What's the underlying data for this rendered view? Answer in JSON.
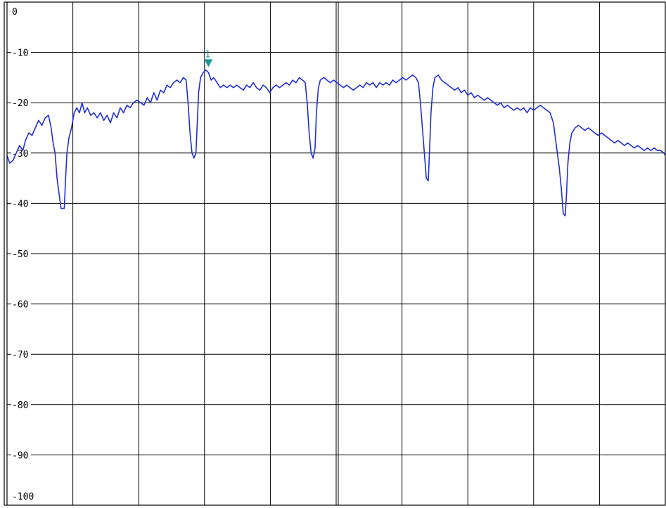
{
  "chart_data": {
    "type": "line",
    "title": "",
    "xlabel": "",
    "ylabel": "",
    "ylim": [
      -100,
      0
    ],
    "xlim": [
      0,
      10
    ],
    "grid": true,
    "y_ticks": [
      {
        "value": 0,
        "label": "0"
      },
      {
        "value": -10,
        "label": "-10"
      },
      {
        "value": -20,
        "label": "-20"
      },
      {
        "value": -30,
        "label": "-30"
      },
      {
        "value": -40,
        "label": "-40"
      },
      {
        "value": -50,
        "label": "-50"
      },
      {
        "value": -60,
        "label": "-60"
      },
      {
        "value": -70,
        "label": "-70"
      },
      {
        "value": -80,
        "label": "-80"
      },
      {
        "value": -90,
        "label": "-90"
      },
      {
        "value": -100,
        "label": "-100"
      }
    ],
    "x_divisions": 10,
    "series": [
      {
        "color": "#1f2fd6",
        "points": [
          [
            0.0,
            -30.5
          ],
          [
            0.04,
            -32
          ],
          [
            0.09,
            -31.5
          ],
          [
            0.14,
            -30
          ],
          [
            0.19,
            -28.5
          ],
          [
            0.24,
            -29.5
          ],
          [
            0.28,
            -27.5
          ],
          [
            0.33,
            -26
          ],
          [
            0.38,
            -26.5
          ],
          [
            0.43,
            -25
          ],
          [
            0.48,
            -23.5
          ],
          [
            0.53,
            -24.5
          ],
          [
            0.58,
            -23
          ],
          [
            0.63,
            -22.5
          ],
          [
            0.67,
            -25
          ],
          [
            0.7,
            -28
          ],
          [
            0.73,
            -30
          ],
          [
            0.76,
            -35
          ],
          [
            0.79,
            -38
          ],
          [
            0.82,
            -41
          ],
          [
            0.87,
            -41
          ],
          [
            0.89,
            -35
          ],
          [
            0.91,
            -30
          ],
          [
            0.94,
            -27
          ],
          [
            0.98,
            -25
          ],
          [
            1.02,
            -22
          ],
          [
            1.06,
            -21
          ],
          [
            1.1,
            -22
          ],
          [
            1.14,
            -20
          ],
          [
            1.18,
            -22
          ],
          [
            1.22,
            -21
          ],
          [
            1.27,
            -22.5
          ],
          [
            1.32,
            -22
          ],
          [
            1.37,
            -23
          ],
          [
            1.42,
            -22
          ],
          [
            1.47,
            -23.5
          ],
          [
            1.52,
            -22.5
          ],
          [
            1.57,
            -24
          ],
          [
            1.62,
            -22
          ],
          [
            1.67,
            -23
          ],
          [
            1.72,
            -21
          ],
          [
            1.77,
            -22
          ],
          [
            1.82,
            -20.5
          ],
          [
            1.87,
            -21
          ],
          [
            1.92,
            -20
          ],
          [
            1.97,
            -19.5
          ],
          [
            2.03,
            -20
          ],
          [
            2.08,
            -20.5
          ],
          [
            2.13,
            -19
          ],
          [
            2.18,
            -20
          ],
          [
            2.23,
            -18
          ],
          [
            2.28,
            -19.5
          ],
          [
            2.33,
            -17.5
          ],
          [
            2.38,
            -18
          ],
          [
            2.43,
            -16.5
          ],
          [
            2.48,
            -17
          ],
          [
            2.53,
            -16
          ],
          [
            2.58,
            -15.5
          ],
          [
            2.63,
            -16
          ],
          [
            2.68,
            -15
          ],
          [
            2.72,
            -15.5
          ],
          [
            2.75,
            -20
          ],
          [
            2.78,
            -26
          ],
          [
            2.81,
            -30
          ],
          [
            2.84,
            -31
          ],
          [
            2.87,
            -30
          ],
          [
            2.89,
            -24
          ],
          [
            2.91,
            -18
          ],
          [
            2.94,
            -15
          ],
          [
            2.98,
            -14
          ],
          [
            3.02,
            -13.5
          ],
          [
            3.06,
            -14
          ],
          [
            3.1,
            -15.5
          ],
          [
            3.14,
            -15
          ],
          [
            3.19,
            -16
          ],
          [
            3.24,
            -17
          ],
          [
            3.29,
            -16.5
          ],
          [
            3.34,
            -17
          ],
          [
            3.39,
            -16.5
          ],
          [
            3.44,
            -17
          ],
          [
            3.49,
            -16.5
          ],
          [
            3.54,
            -17
          ],
          [
            3.59,
            -17.5
          ],
          [
            3.64,
            -16.5
          ],
          [
            3.69,
            -17
          ],
          [
            3.74,
            -16
          ],
          [
            3.79,
            -17
          ],
          [
            3.84,
            -17.5
          ],
          [
            3.89,
            -16.5
          ],
          [
            3.94,
            -17
          ],
          [
            3.99,
            -18
          ],
          [
            4.04,
            -17
          ],
          [
            4.09,
            -16.5
          ],
          [
            4.14,
            -17
          ],
          [
            4.19,
            -16.5
          ],
          [
            4.24,
            -16
          ],
          [
            4.29,
            -16.5
          ],
          [
            4.34,
            -15.5
          ],
          [
            4.39,
            -16
          ],
          [
            4.44,
            -15
          ],
          [
            4.49,
            -15.5
          ],
          [
            4.53,
            -16
          ],
          [
            4.56,
            -20
          ],
          [
            4.59,
            -26
          ],
          [
            4.62,
            -30
          ],
          [
            4.65,
            -31
          ],
          [
            4.68,
            -29
          ],
          [
            4.7,
            -22
          ],
          [
            4.73,
            -17
          ],
          [
            4.76,
            -15.5
          ],
          [
            4.81,
            -15
          ],
          [
            4.86,
            -15.5
          ],
          [
            4.91,
            -16
          ],
          [
            4.96,
            -15.5
          ],
          [
            5.01,
            -16
          ],
          [
            5.06,
            -16.5
          ],
          [
            5.11,
            -17
          ],
          [
            5.16,
            -16.5
          ],
          [
            5.21,
            -17
          ],
          [
            5.26,
            -17.5
          ],
          [
            5.31,
            -17
          ],
          [
            5.36,
            -16.5
          ],
          [
            5.41,
            -17
          ],
          [
            5.46,
            -16
          ],
          [
            5.51,
            -16.5
          ],
          [
            5.56,
            -16
          ],
          [
            5.61,
            -17
          ],
          [
            5.66,
            -16
          ],
          [
            5.71,
            -16.5
          ],
          [
            5.76,
            -16
          ],
          [
            5.81,
            -16.5
          ],
          [
            5.86,
            -15.5
          ],
          [
            5.91,
            -16
          ],
          [
            5.96,
            -15.5
          ],
          [
            6.01,
            -15
          ],
          [
            6.06,
            -15.5
          ],
          [
            6.11,
            -15
          ],
          [
            6.16,
            -14.5
          ],
          [
            6.21,
            -15
          ],
          [
            6.25,
            -16
          ],
          [
            6.28,
            -20
          ],
          [
            6.31,
            -25
          ],
          [
            6.34,
            -30
          ],
          [
            6.37,
            -35
          ],
          [
            6.4,
            -35.5
          ],
          [
            6.42,
            -29
          ],
          [
            6.44,
            -22
          ],
          [
            6.47,
            -17
          ],
          [
            6.5,
            -15
          ],
          [
            6.55,
            -14.5
          ],
          [
            6.6,
            -15.5
          ],
          [
            6.65,
            -16
          ],
          [
            6.7,
            -16.5
          ],
          [
            6.75,
            -17
          ],
          [
            6.8,
            -17.5
          ],
          [
            6.85,
            -17
          ],
          [
            6.9,
            -18
          ],
          [
            6.95,
            -17.5
          ],
          [
            7.0,
            -18.5
          ],
          [
            7.05,
            -18
          ],
          [
            7.1,
            -19
          ],
          [
            7.15,
            -18.5
          ],
          [
            7.2,
            -19
          ],
          [
            7.25,
            -19.5
          ],
          [
            7.3,
            -19
          ],
          [
            7.35,
            -19.5
          ],
          [
            7.4,
            -20
          ],
          [
            7.45,
            -20.5
          ],
          [
            7.5,
            -20
          ],
          [
            7.55,
            -21
          ],
          [
            7.6,
            -20.5
          ],
          [
            7.65,
            -21
          ],
          [
            7.7,
            -21.5
          ],
          [
            7.75,
            -21
          ],
          [
            7.8,
            -21.5
          ],
          [
            7.85,
            -21
          ],
          [
            7.9,
            -22
          ],
          [
            7.95,
            -21
          ],
          [
            8.0,
            -21.5
          ],
          [
            8.05,
            -21
          ],
          [
            8.1,
            -20.5
          ],
          [
            8.15,
            -21
          ],
          [
            8.2,
            -21.5
          ],
          [
            8.25,
            -22
          ],
          [
            8.3,
            -24
          ],
          [
            8.33,
            -27
          ],
          [
            8.36,
            -30
          ],
          [
            8.39,
            -33
          ],
          [
            8.42,
            -37
          ],
          [
            8.45,
            -42
          ],
          [
            8.48,
            -42.5
          ],
          [
            8.5,
            -38
          ],
          [
            8.52,
            -32
          ],
          [
            8.55,
            -28
          ],
          [
            8.58,
            -26
          ],
          [
            8.63,
            -25
          ],
          [
            8.68,
            -24.5
          ],
          [
            8.73,
            -25
          ],
          [
            8.78,
            -25.5
          ],
          [
            8.83,
            -25
          ],
          [
            8.88,
            -25.5
          ],
          [
            8.93,
            -26
          ],
          [
            8.98,
            -26.5
          ],
          [
            9.03,
            -26
          ],
          [
            9.08,
            -26.5
          ],
          [
            9.13,
            -27
          ],
          [
            9.18,
            -27.5
          ],
          [
            9.23,
            -28
          ],
          [
            9.28,
            -27.5
          ],
          [
            9.33,
            -28
          ],
          [
            9.38,
            -28.5
          ],
          [
            9.43,
            -28
          ],
          [
            9.48,
            -28.5
          ],
          [
            9.53,
            -29
          ],
          [
            9.58,
            -28.5
          ],
          [
            9.63,
            -29
          ],
          [
            9.68,
            -29.5
          ],
          [
            9.73,
            -29
          ],
          [
            9.78,
            -29.5
          ],
          [
            9.83,
            -29
          ],
          [
            9.88,
            -29.5
          ],
          [
            9.93,
            -29.5
          ],
          [
            9.98,
            -30
          ],
          [
            10.0,
            -30.5
          ]
        ]
      }
    ],
    "marker": {
      "label": "1",
      "x": 3.06,
      "y": -12.2,
      "color": "#1a9a96"
    }
  }
}
